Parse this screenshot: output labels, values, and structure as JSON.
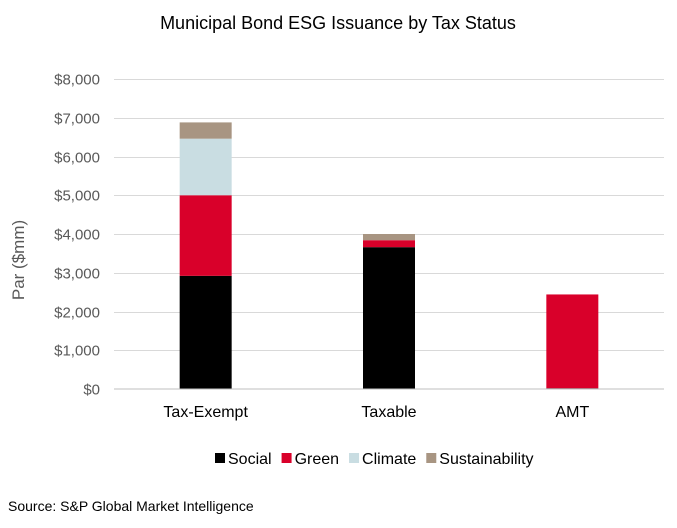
{
  "chart_data": {
    "type": "bar",
    "stacked": true,
    "title": "Municipal Bond ESG Issuance by Tax Status",
    "xlabel": "",
    "ylabel": "Par ($mm)",
    "categories": [
      "Tax-Exempt",
      "Taxable",
      "AMT"
    ],
    "ylim": [
      0,
      8000
    ],
    "yticks": [
      0,
      1000,
      2000,
      3000,
      4000,
      5000,
      6000,
      7000,
      8000
    ],
    "ytick_labels": [
      "$0",
      "$1,000",
      "$2,000",
      "$3,000",
      "$4,000",
      "$5,000",
      "$6,000",
      "$7,000",
      "$8,000"
    ],
    "series": [
      {
        "name": "Social",
        "color": "#000000",
        "values": [
          2920,
          3660,
          20
        ]
      },
      {
        "name": "Green",
        "color": "#d9002a",
        "values": [
          2080,
          180,
          2420
        ]
      },
      {
        "name": "Climate",
        "color": "#c9dde2",
        "values": [
          1460,
          0,
          0
        ]
      },
      {
        "name": "Sustainability",
        "color": "#a89582",
        "values": [
          420,
          160,
          0
        ]
      }
    ],
    "legend_position": "bottom",
    "grid": true
  },
  "source": "Source: S&P Global Market Intelligence"
}
